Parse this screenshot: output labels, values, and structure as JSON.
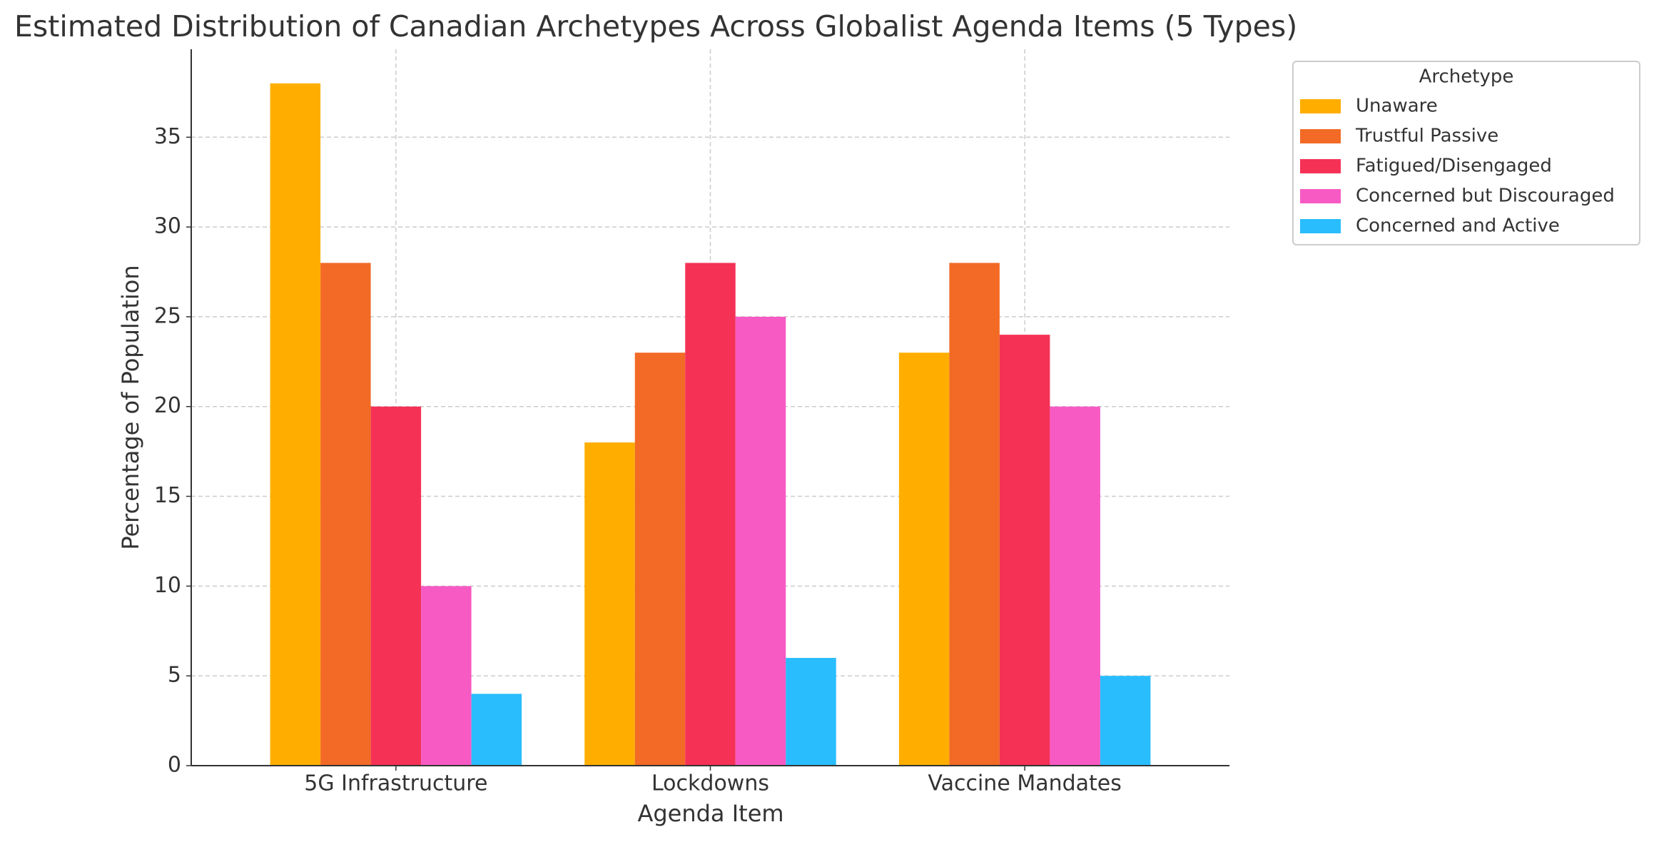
{
  "chart_data": {
    "type": "bar",
    "title": "Estimated Distribution of Canadian Archetypes Across Globalist Agenda Items (5 Types)",
    "x_label": "Agenda Item",
    "y_label": "Percentage of Population",
    "categories": [
      "5G Infrastructure",
      "Lockdowns",
      "Vaccine Mandates"
    ],
    "series": [
      {
        "name": "Unaware",
        "color": "#ffae00",
        "values": [
          38,
          18,
          23
        ]
      },
      {
        "name": "Trustful Passive",
        "color": "#f26a25",
        "values": [
          28,
          23,
          28
        ]
      },
      {
        "name": "Fatigued/Disengaged",
        "color": "#f53156",
        "values": [
          20,
          28,
          24
        ]
      },
      {
        "name": "Concerned but Discouraged",
        "color": "#f75ac3",
        "values": [
          10,
          25,
          20
        ]
      },
      {
        "name": "Concerned and Active",
        "color": "#29bdfd",
        "values": [
          4,
          6,
          5
        ]
      }
    ],
    "legend_title": "Archetype",
    "legend": "upper right outside",
    "ylim": [
      0,
      39.9
    ],
    "yticks": [
      0,
      5,
      10,
      15,
      20,
      25,
      30,
      35
    ],
    "grid": true
  }
}
